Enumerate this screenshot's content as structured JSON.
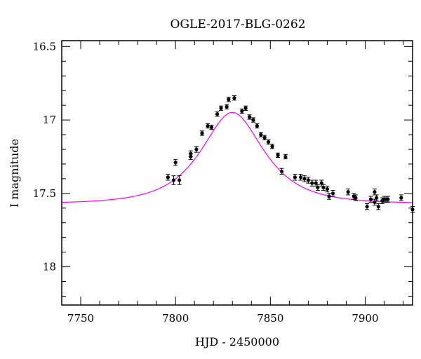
{
  "chart_data": {
    "type": "scatter",
    "title": "OGLE-2017-BLG-0262",
    "xlabel": "HJD - 2450000",
    "ylabel": "I magnitude",
    "xlim": [
      7740,
      7925
    ],
    "ylim": [
      18.26,
      16.46
    ],
    "y_inverted": true,
    "x_ticks": [
      7750,
      7800,
      7850,
      7900
    ],
    "y_ticks": [
      16.5,
      17,
      17.5,
      18
    ],
    "y_tick_labels": [
      "16.5",
      "17",
      "17.5",
      "18"
    ],
    "grid": false,
    "colors": {
      "model": "#ff00ff",
      "points": "#000000"
    },
    "series": [
      {
        "type": "model_curve",
        "model": {
          "t0": 7830,
          "tE": 25,
          "u0": 0.65,
          "base": 17.57
        }
      },
      {
        "type": "points_with_errorbars",
        "points": [
          [
            7796,
            17.39,
            0.02
          ],
          [
            7799,
            17.41,
            0.03
          ],
          [
            7800,
            17.29,
            0.02
          ],
          [
            7802,
            17.41,
            0.03
          ],
          [
            7808,
            17.23,
            0.02
          ],
          [
            7808,
            17.25,
            0.02
          ],
          [
            7811,
            17.2,
            0.02
          ],
          [
            7814,
            17.09,
            0.015
          ],
          [
            7817,
            17.04,
            0.015
          ],
          [
            7819,
            17.05,
            0.015
          ],
          [
            7822,
            16.96,
            0.015
          ],
          [
            7824,
            16.92,
            0.015
          ],
          [
            7827,
            16.91,
            0.015
          ],
          [
            7828,
            16.86,
            0.015
          ],
          [
            7831,
            16.85,
            0.015
          ],
          [
            7835,
            16.94,
            0.015
          ],
          [
            7837,
            16.92,
            0.015
          ],
          [
            7839,
            16.98,
            0.015
          ],
          [
            7841,
            17.0,
            0.015
          ],
          [
            7843,
            17.04,
            0.015
          ],
          [
            7845,
            17.1,
            0.015
          ],
          [
            7847,
            17.12,
            0.015
          ],
          [
            7849,
            17.15,
            0.015
          ],
          [
            7851,
            17.18,
            0.015
          ],
          [
            7854,
            17.24,
            0.015
          ],
          [
            7856,
            17.35,
            0.02
          ],
          [
            7858,
            17.25,
            0.015
          ],
          [
            7863,
            17.39,
            0.02
          ],
          [
            7866,
            17.39,
            0.02
          ],
          [
            7868,
            17.4,
            0.02
          ],
          [
            7870,
            17.41,
            0.02
          ],
          [
            7872,
            17.43,
            0.02
          ],
          [
            7874,
            17.43,
            0.02
          ],
          [
            7875,
            17.46,
            0.02
          ],
          [
            7877,
            17.43,
            0.02
          ],
          [
            7878,
            17.46,
            0.02
          ],
          [
            7880,
            17.47,
            0.02
          ],
          [
            7881,
            17.52,
            0.02
          ],
          [
            7883,
            17.5,
            0.02
          ],
          [
            7891,
            17.49,
            0.02
          ],
          [
            7894,
            17.52,
            0.02
          ],
          [
            7895,
            17.53,
            0.02
          ],
          [
            7901,
            17.59,
            0.02
          ],
          [
            7903,
            17.54,
            0.02
          ],
          [
            7905,
            17.49,
            0.02
          ],
          [
            7905,
            17.56,
            0.02
          ],
          [
            7906,
            17.53,
            0.02
          ],
          [
            7907,
            17.59,
            0.02
          ],
          [
            7909,
            17.55,
            0.02
          ],
          [
            7910,
            17.54,
            0.02
          ],
          [
            7911,
            17.54,
            0.02
          ],
          [
            7912,
            17.54,
            0.02
          ],
          [
            7919,
            17.53,
            0.02
          ],
          [
            7925,
            17.61,
            0.02
          ]
        ]
      }
    ]
  }
}
